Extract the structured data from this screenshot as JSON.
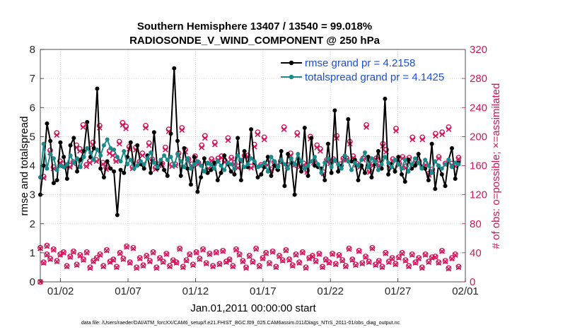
{
  "chart_data": {
    "type": "line",
    "title": [
      "Southern Hemisphere 13407 / 13540 = 99.018%",
      "RADIOSONDE_V_WIND_COMPONENT @ 250 hPa"
    ],
    "xlabel": "Jan.01,2011 00:00:00 start",
    "ylabel_left": "rmse and totalspread",
    "ylabel_right": "# of obs: o=possible; ×=assimilated",
    "footnote": "data file: /Users/raeder/DAI/ATM_forcXX/CAM6_setup/f.e21.FHIST_BGC.f09_025.CAM6assim.011/Diags_NTrS_2011-01/obs_diag_output.nc",
    "x_unit": "days since Jan.01,2011 00:00",
    "xlim": [
      0,
      31.5
    ],
    "ylim_left": [
      0,
      8
    ],
    "ylim_right": [
      0,
      320
    ],
    "x_ticks": [
      {
        "value": 1.5,
        "label": "01/02"
      },
      {
        "value": 6.5,
        "label": "01/07"
      },
      {
        "value": 11.5,
        "label": "01/12"
      },
      {
        "value": 16.5,
        "label": "01/17"
      },
      {
        "value": 21.5,
        "label": "01/22"
      },
      {
        "value": 26.5,
        "label": "01/27"
      },
      {
        "value": 31.5,
        "label": "02/01"
      }
    ],
    "left_ticks": [
      "0",
      "1",
      "2",
      "3",
      "4",
      "5",
      "6",
      "7",
      "8"
    ],
    "right_ticks": [
      "0",
      "40",
      "80",
      "120",
      "160",
      "200",
      "240",
      "280",
      "320"
    ],
    "grid": true,
    "legend_position": "top-right",
    "colors": {
      "rmse": "#000000",
      "spread": "#1b8a8a",
      "obs": "#d4145a",
      "legend_text": "#1a4fd6"
    },
    "series": [
      {
        "name": "rmse grand pr = 4.2158",
        "color": "#000000",
        "values": [
          3.0,
          4.0,
          5.45,
          4.85,
          3.4,
          3.5,
          4.8,
          4.3,
          3.55,
          4.7,
          4.95,
          3.8,
          4.2,
          4.5,
          5.5,
          4.3,
          4.6,
          6.65,
          3.9,
          3.6,
          4.15,
          3.9,
          3.8,
          2.3,
          3.85,
          3.75,
          4.3,
          4.8,
          3.9,
          4.7,
          4.05,
          3.9,
          4.35,
          3.75,
          5.15,
          3.9,
          4.1,
          3.85,
          3.65,
          5.1,
          7.35,
          4.85,
          3.65,
          4.6,
          3.9,
          3.35,
          4.3,
          3.1,
          3.6,
          4.25,
          3.75,
          3.85,
          4.1,
          3.5,
          3.75,
          4.35,
          4.05,
          3.8,
          3.7,
          4.95,
          3.5,
          4.5,
          3.95,
          5.25,
          4.1,
          3.6,
          3.7,
          3.95,
          4.3,
          3.65,
          4.0,
          3.85,
          4.5,
          3.3,
          4.4,
          4.1,
          3.0,
          4.25,
          3.8,
          5.3,
          3.65,
          4.95,
          4.0,
          3.95,
          3.9,
          3.5,
          4.75,
          3.75,
          5.9,
          3.8,
          4.0,
          4.3,
          5.6,
          4.15,
          4.2,
          3.5,
          4.0,
          3.75,
          4.3,
          3.6,
          4.05,
          4.5,
          3.9,
          6.3,
          3.7,
          4.05,
          3.8,
          4.3,
          3.7,
          3.45,
          4.2,
          3.9,
          4.0,
          4.4,
          3.95,
          3.9,
          3.5,
          4.75,
          3.2,
          4.0,
          3.7,
          3.3,
          4.2,
          4.6,
          3.55,
          4.1
        ]
      },
      {
        "name": "totalspread grand pr = 4.1425",
        "color": "#1b8a8a",
        "values": [
          3.6,
          4.75,
          3.9,
          4.4,
          4.25,
          3.85,
          4.0,
          3.95,
          4.05,
          4.35,
          4.1,
          4.25,
          3.95,
          4.3,
          4.6,
          4.45,
          4.2,
          4.55,
          4.35,
          4.7,
          4.9,
          4.6,
          4.55,
          4.3,
          4.15,
          4.5,
          4.05,
          4.2,
          3.9,
          4.0,
          4.15,
          4.05,
          4.25,
          4.45,
          4.1,
          3.95,
          4.2,
          4.35,
          4.2,
          4.3,
          4.0,
          4.4,
          4.15,
          3.95,
          4.25,
          3.9,
          4.05,
          4.15,
          4.0,
          3.8,
          4.1,
          4.05,
          3.9,
          4.15,
          4.0,
          3.85,
          4.1,
          4.05,
          3.9,
          4.35,
          4.2,
          3.95,
          4.05,
          4.25,
          4.15,
          3.95,
          4.0,
          4.1,
          3.8,
          4.3,
          4.15,
          3.95,
          4.2,
          4.05,
          3.9,
          4.25,
          4.05,
          4.4,
          4.15,
          3.9,
          4.0,
          4.15,
          4.3,
          4.05,
          3.75,
          4.1,
          4.25,
          3.95,
          4.2,
          4.05,
          3.9,
          4.35,
          4.15,
          3.85,
          4.1,
          4.0,
          4.2,
          4.45,
          3.95,
          4.25,
          4.15,
          3.85,
          4.05,
          4.3,
          4.1,
          3.95,
          4.2,
          4.05,
          3.9,
          4.2,
          3.8,
          4.05,
          4.25,
          4.1,
          3.9,
          4.2,
          4.0,
          3.75,
          4.15,
          4.0,
          3.9,
          4.05,
          4.2,
          3.95,
          4.1,
          4.05
        ]
      },
      {
        "name": "obs possible (o)",
        "color": "#d4145a",
        "axis": "right",
        "values": [
          0,
          145,
          38,
          181,
          158,
          205,
          166,
          162,
          160,
          160,
          165,
          188,
          183,
          216,
          161,
          166,
          192,
          168,
          215,
          164,
          157,
          180,
          177,
          168,
          193,
          219,
          214,
          186,
          158,
          185,
          165,
          177,
          215,
          191,
          169,
          157,
          162,
          163,
          185,
          210,
          161,
          162,
          177,
          212,
          182,
          169,
          162,
          173,
          164,
          188,
          201,
          158,
          169,
          192,
          170,
          173,
          167,
          198,
          171,
          164,
          159,
          167,
          174,
          174,
          159,
          189,
          206,
          161,
          199,
          163,
          155,
          165,
          159,
          166,
          213,
          161,
          177,
          162,
          205,
          161,
          163,
          153,
          200,
          166,
          188,
          183,
          151,
          168,
          165,
          169,
          201,
          162,
          170,
          170,
          193,
          173,
          163,
          160,
          170,
          216,
          153,
          162,
          170,
          162,
          190,
          182,
          160,
          169,
          211,
          163,
          172,
          159,
          171,
          199,
          166,
          166,
          199,
          163,
          149,
          155,
          204,
          172,
          206,
          163,
          213,
          163,
          161,
          171
        ]
      },
      {
        "name": "obs assimilated (×)",
        "color": "#d4145a",
        "axis": "right",
        "values": [
          0,
          143,
          37,
          178,
          156,
          202,
          164,
          160,
          158,
          158,
          163,
          185,
          180,
          213,
          159,
          164,
          189,
          166,
          212,
          162,
          155,
          177,
          174,
          166,
          190,
          216,
          211,
          183,
          156,
          182,
          163,
          174,
          212,
          188,
          166,
          155,
          160,
          161,
          182,
          207,
          159,
          160,
          174,
          209,
          179,
          167,
          160,
          170,
          162,
          185,
          198,
          156,
          167,
          189,
          168,
          171,
          165,
          195,
          169,
          162,
          157,
          165,
          172,
          172,
          157,
          186,
          203,
          159,
          196,
          161,
          153,
          163,
          157,
          164,
          210,
          159,
          174,
          160,
          202,
          159,
          161,
          151,
          197,
          164,
          185,
          180,
          149,
          166,
          163,
          167,
          198,
          160,
          168,
          168,
          190,
          171,
          161,
          158,
          168,
          213,
          151,
          160,
          168,
          160,
          187,
          179,
          158,
          167,
          208,
          161,
          170,
          157,
          169,
          196,
          164,
          164,
          196,
          161,
          147,
          153,
          201,
          170,
          203,
          161,
          210,
          161,
          159,
          169
        ]
      },
      {
        "name": "obs low group possible (o)",
        "color": "#d4145a",
        "axis": "right",
        "values": [
          47,
          27,
          50,
          32,
          45,
          29,
          38,
          41,
          22,
          35,
          42,
          24,
          37,
          31,
          41,
          20,
          29,
          33,
          38,
          22,
          44,
          28,
          31,
          21,
          40,
          32,
          49,
          27,
          47,
          20,
          33,
          23,
          36,
          29,
          41,
          20,
          33,
          28,
          39,
          22,
          30,
          27,
          46,
          21,
          30,
          38,
          24,
          41,
          32,
          45,
          26,
          39,
          22,
          41,
          25,
          43,
          28,
          31,
          22,
          45,
          38,
          29,
          20,
          36,
          28,
          46,
          22,
          33,
          40,
          26,
          42,
          21,
          36,
          30,
          44,
          31,
          23,
          38,
          27,
          41,
          20,
          33,
          36,
          29,
          39,
          21,
          31,
          27,
          39,
          25,
          37,
          30,
          22,
          46,
          31,
          24,
          43,
          26,
          35,
          28,
          47,
          24,
          29,
          21,
          40,
          28,
          33,
          25,
          34,
          40,
          30,
          22,
          38,
          27,
          33,
          20,
          38,
          28,
          34,
          35,
          27,
          43,
          29,
          19,
          33,
          38,
          21
        ]
      },
      {
        "name": "obs low group assimilated (×)",
        "color": "#d4145a",
        "axis": "right",
        "values": [
          46,
          26,
          49,
          31,
          44,
          28,
          37,
          40,
          21,
          34,
          41,
          23,
          36,
          30,
          40,
          19,
          28,
          32,
          37,
          21,
          43,
          27,
          30,
          20,
          39,
          31,
          48,
          26,
          46,
          19,
          32,
          22,
          35,
          28,
          40,
          19,
          32,
          27,
          38,
          21,
          29,
          26,
          45,
          20,
          29,
          37,
          23,
          40,
          31,
          44,
          25,
          38,
          21,
          40,
          24,
          42,
          27,
          30,
          21,
          44,
          37,
          28,
          19,
          35,
          27,
          45,
          21,
          32,
          39,
          25,
          41,
          20,
          35,
          29,
          43,
          30,
          22,
          37,
          26,
          40,
          19,
          32,
          35,
          28,
          38,
          20,
          30,
          26,
          38,
          24,
          36,
          29,
          21,
          45,
          30,
          23,
          42,
          25,
          34,
          27,
          46,
          23,
          28,
          20,
          39,
          27,
          32,
          24,
          33,
          39,
          29,
          21,
          37,
          26,
          32,
          19,
          37,
          27,
          33,
          34,
          26,
          42,
          28,
          18,
          32,
          37,
          20
        ]
      }
    ]
  }
}
